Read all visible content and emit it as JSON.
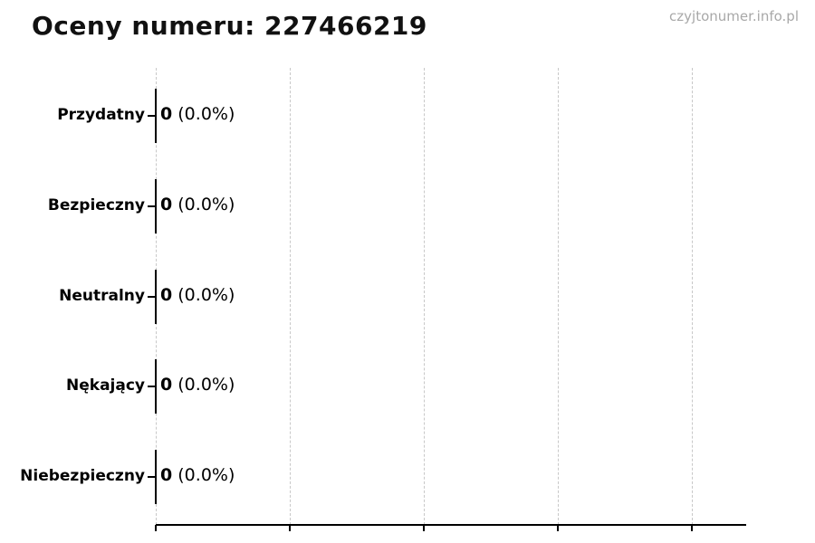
{
  "page": {
    "watermark": "czyjtonumer.info.pl"
  },
  "colors": {
    "background": "#ffffff",
    "title_text": "#111111",
    "label_text": "#000000",
    "watermark_text": "#a8a8a8",
    "gridline": "#c8c8c8",
    "axis": "#000000",
    "bar_edge": "#000000"
  },
  "chart_data": {
    "type": "bar",
    "orientation": "horizontal",
    "title": "Oceny numeru: 227466219",
    "categories": [
      "Przydatny",
      "Bezpieczny",
      "Neutralny",
      "Nękający",
      "Niebezpieczny"
    ],
    "values": [
      0,
      0,
      0,
      0,
      0
    ],
    "percents": [
      "0.0%",
      "0.0%",
      "0.0%",
      "0.0%",
      "0.0%"
    ],
    "value_label_format": "{count} ({percent})",
    "xlabel": "",
    "ylabel": "",
    "xlim": [
      0,
      1
    ],
    "x_tick_labels": [],
    "grid": true,
    "gridline_style": "dashed",
    "gridline_count": 5,
    "legend": false
  }
}
